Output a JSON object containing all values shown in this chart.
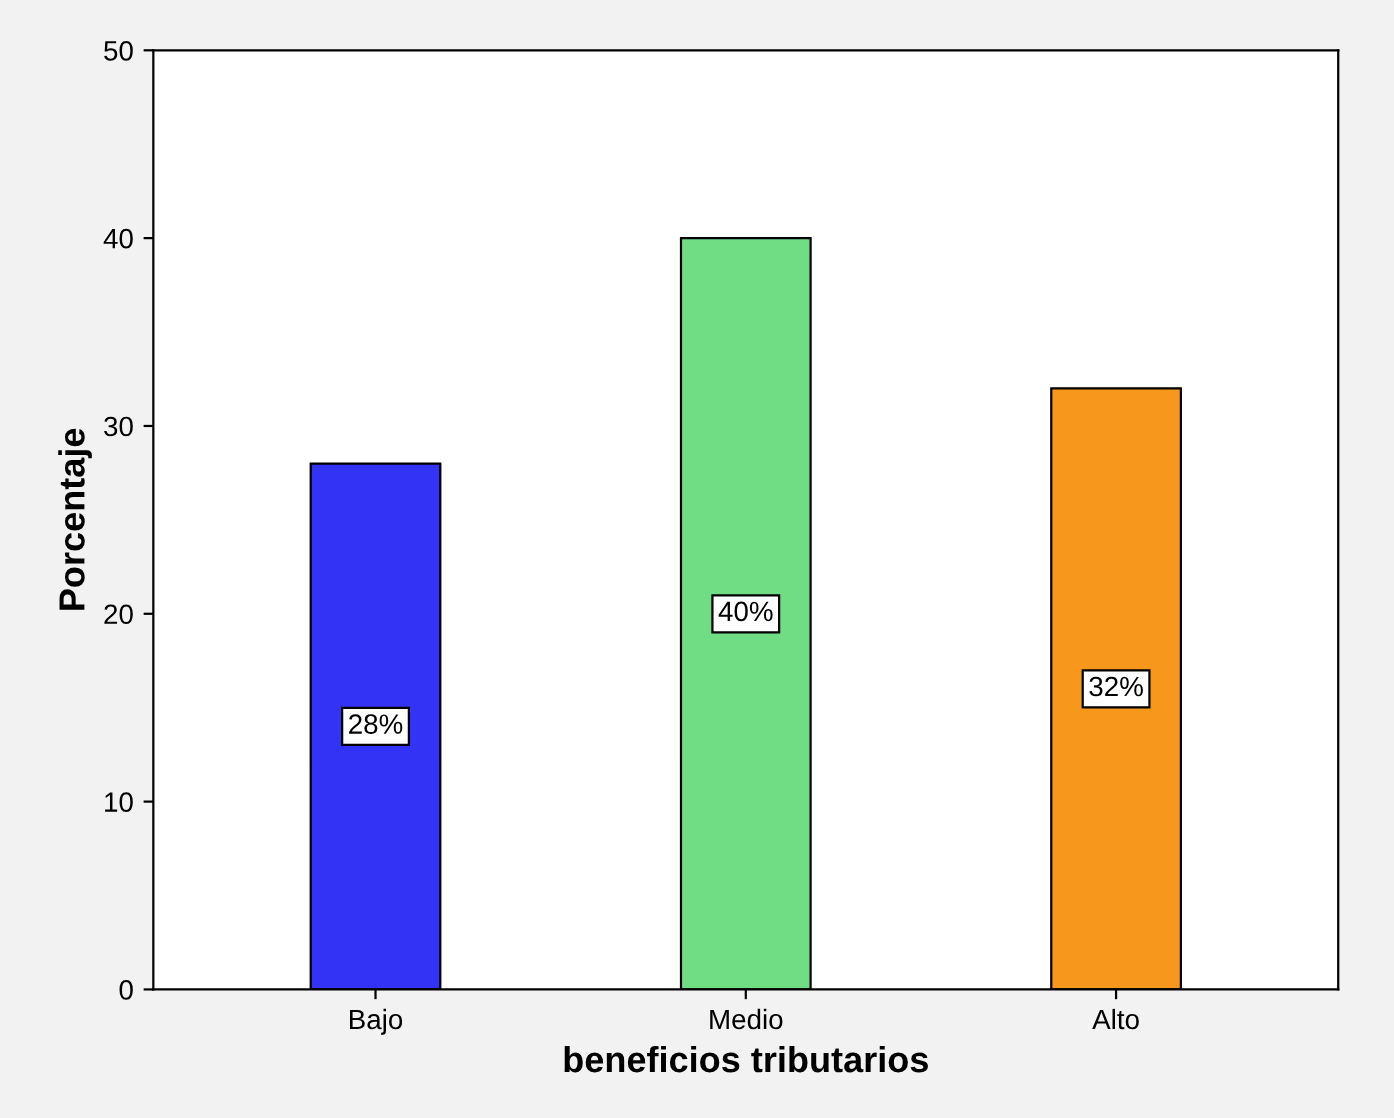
{
  "chart_data": {
    "type": "bar",
    "xlabel": "beneficios tributarios",
    "ylabel": "Porcentaje",
    "categories": [
      "Bajo",
      "Medio",
      "Alto"
    ],
    "values": [
      28,
      40,
      32
    ],
    "colors": [
      "#3333f5",
      "#70dc84",
      "#f7981d"
    ],
    "value_labels": [
      "28%",
      "40%",
      "32%"
    ],
    "ylim": [
      0,
      50
    ],
    "yticks": [
      0,
      10,
      20,
      30,
      40,
      50
    ],
    "grid": false,
    "legend": false
  }
}
